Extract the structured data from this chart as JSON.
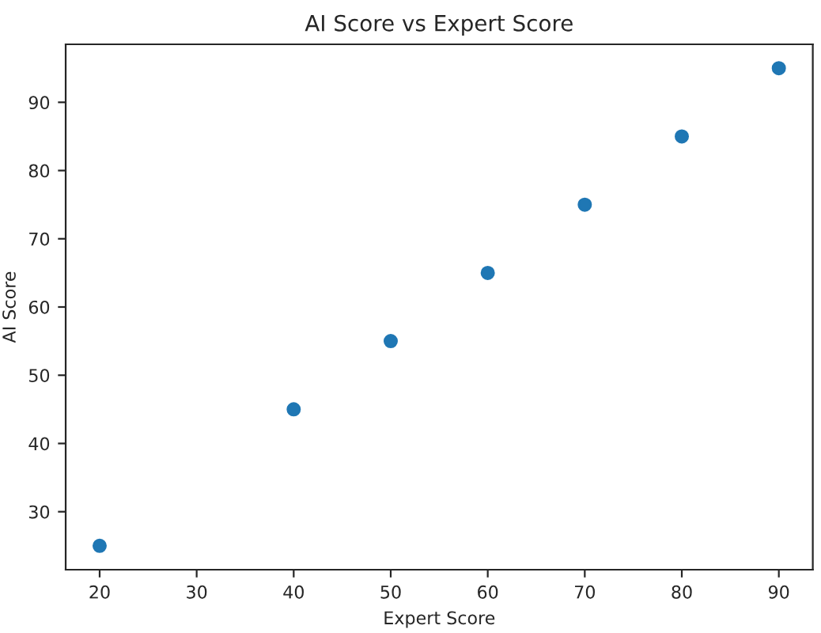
{
  "chart_data": {
    "type": "scatter",
    "title": "AI Score vs Expert Score",
    "xlabel": "Expert Score",
    "ylabel": "AI Score",
    "x": [
      20,
      40,
      50,
      60,
      70,
      80,
      90
    ],
    "series": [
      {
        "color": "#1f77b4",
        "values": [
          25,
          45,
          55,
          65,
          75,
          85,
          95
        ]
      }
    ],
    "xlim": [
      16.5,
      93.5
    ],
    "ylim": [
      21.5,
      98.5
    ],
    "xticks": [
      20,
      30,
      40,
      50,
      60,
      70,
      80,
      90
    ],
    "yticks": [
      30,
      40,
      50,
      60,
      70,
      80,
      90
    ],
    "marker": "circle",
    "grid": false
  }
}
